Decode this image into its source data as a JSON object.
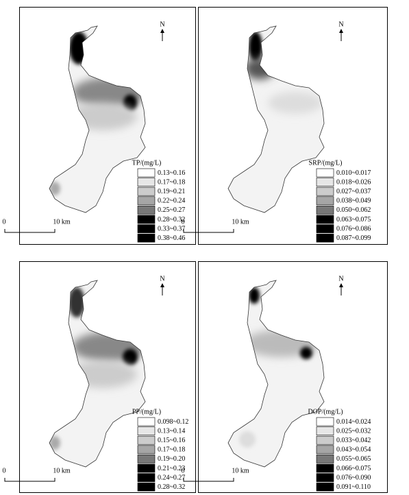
{
  "panels": [
    {
      "legend": {
        "title": "TP/(mg/L)",
        "classes": [
          "0.13~0.16",
          "0.17~0.18",
          "0.19~0.21",
          "0.22~0.24",
          "0.25~0.27",
          "0.28~0.32",
          "0.33~0.37",
          "0.38~0.46"
        ]
      },
      "scale": {
        "start": "0",
        "end": "10 km"
      },
      "north": "N"
    },
    {
      "legend": {
        "title": "SRP/(mg/L)",
        "classes": [
          "0.010~0.017",
          "0.018~0.026",
          "0.027~0.037",
          "0.038~0.049",
          "0.050~0.062",
          "0.063~0.075",
          "0.076~0.086",
          "0.087~0.099"
        ]
      },
      "scale": {
        "start": "0",
        "end": "10 km"
      },
      "north": "N"
    },
    {
      "legend": {
        "title": "PP/(mg/L)",
        "classes": [
          "0.098~0.12",
          "0.13~0.14",
          "0.15~0.16",
          "0.17~0.18",
          "0.19~0.20",
          "0.21~0.23",
          "0.24~0.27",
          "0.28~0.32"
        ]
      },
      "scale": {
        "start": "0",
        "end": "10 km"
      },
      "north": "N"
    },
    {
      "legend": {
        "title": "DOP/(mg/L)",
        "classes": [
          "0.014~0.024",
          "0.025~0.032",
          "0.033~0.042",
          "0.043~0.054",
          "0.055~0.065",
          "0.066~0.075",
          "0.076~0.090",
          "0.091~0.110"
        ]
      },
      "scale": {
        "start": "0",
        "end": "10 km"
      },
      "north": "N"
    }
  ]
}
